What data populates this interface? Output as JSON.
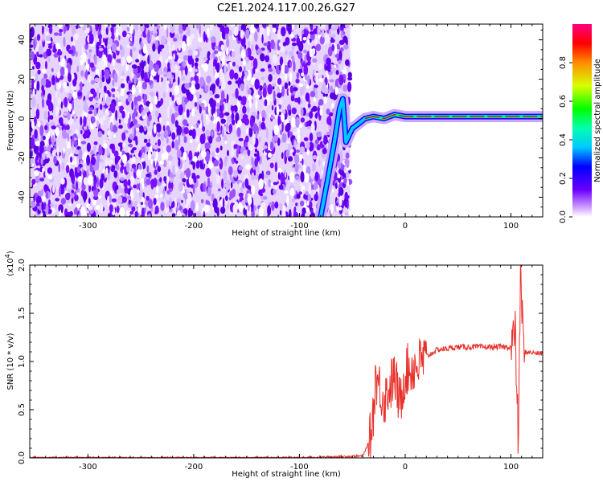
{
  "figure_title": "C2E1.2024.117.00.26.G27",
  "chart_data": [
    {
      "type": "heatmap",
      "xlabel": "Height of straight line (km)",
      "ylabel": "Frequency (Hz)",
      "xlim": [
        -355,
        130
      ],
      "ylim": [
        -50,
        48
      ],
      "xticks": [
        -300,
        -200,
        -100,
        0,
        100
      ],
      "yticks": [
        -40,
        -20,
        0,
        20,
        40
      ],
      "noise_region_x": [
        -355,
        -52
      ],
      "trace": {
        "description_points": [
          {
            "x": -80,
            "y": -50
          },
          {
            "x": -73,
            "y": -30
          },
          {
            "x": -67,
            "y": -12
          },
          {
            "x": -62,
            "y": 5
          },
          {
            "x": -59,
            "y": 10
          },
          {
            "x": -56,
            "y": -12
          },
          {
            "x": -50,
            "y": -5
          },
          {
            "x": -45,
            "y": -3
          },
          {
            "x": -38,
            "y": 0
          },
          {
            "x": -30,
            "y": 1
          },
          {
            "x": -20,
            "y": 0
          },
          {
            "x": -10,
            "y": 2
          },
          {
            "x": 0,
            "y": 1
          },
          {
            "x": 50,
            "y": 1
          },
          {
            "x": 100,
            "y": 1
          },
          {
            "x": 130,
            "y": 1
          }
        ]
      },
      "colorbar": {
        "label": "Normalized spectral amplitude",
        "range": [
          0,
          1
        ],
        "ticks": [
          "0.0",
          "0.2",
          "0.4",
          "0.6",
          "0.8"
        ],
        "tick_values": [
          0,
          0.2,
          0.4,
          0.6,
          0.8
        ],
        "colormap": "rainbow"
      },
      "colors": {
        "noise": "#6a00e8",
        "trace_core": "#e0002a"
      }
    },
    {
      "type": "line",
      "xlabel": "Height of straight line (km)",
      "ylabel": "SNR (10 * v/v)",
      "scale_label": "(x10",
      "scale_exp": "4",
      "scale_close": ")",
      "xlim": [
        -355,
        130
      ],
      "ylim": [
        0,
        2.0
      ],
      "xticks": [
        -300,
        -200,
        -100,
        0,
        100
      ],
      "yticks": [
        "0.0",
        "0.5",
        "1.0",
        "1.5",
        "2.0"
      ],
      "ytick_values": [
        0,
        0.5,
        1.0,
        1.5,
        2.0
      ],
      "series": [
        {
          "color": "#e8302a",
          "points": [
            {
              "x": -355,
              "y": 0.0
            },
            {
              "x": -100,
              "y": 0.0
            },
            {
              "x": -40,
              "y": 0.02
            },
            {
              "x": -33,
              "y": 0.2
            },
            {
              "x": -30,
              "y": 0.5
            },
            {
              "x": -28,
              "y": 0.85
            },
            {
              "x": -20,
              "y": 0.6
            },
            {
              "x": -10,
              "y": 0.85
            },
            {
              "x": -5,
              "y": 0.55
            },
            {
              "x": 0,
              "y": 0.9
            },
            {
              "x": 10,
              "y": 0.95
            },
            {
              "x": 20,
              "y": 1.05
            },
            {
              "x": 30,
              "y": 1.12
            },
            {
              "x": 50,
              "y": 1.15
            },
            {
              "x": 80,
              "y": 1.15
            },
            {
              "x": 100,
              "y": 1.15
            },
            {
              "x": 104,
              "y": 1.3
            },
            {
              "x": 107,
              "y": 0.13
            },
            {
              "x": 109,
              "y": 1.95
            },
            {
              "x": 112,
              "y": 1.1
            },
            {
              "x": 130,
              "y": 1.08
            }
          ]
        }
      ]
    }
  ]
}
